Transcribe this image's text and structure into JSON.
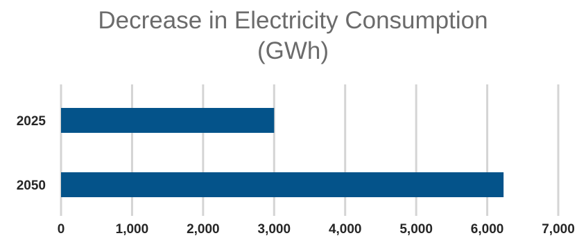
{
  "chart_data": {
    "type": "bar",
    "orientation": "horizontal",
    "title_line1": "Decrease in Electricity Consumption",
    "title_line2": "(GWh)",
    "categories": [
      "2025",
      "2050"
    ],
    "values": [
      3000,
      6230
    ],
    "xlim": [
      0,
      7000
    ],
    "xticks": [
      "0",
      "1,000",
      "2,000",
      "3,000",
      "4,000",
      "5,000",
      "6,000",
      "7,000"
    ],
    "grid": "vertical",
    "legend": "none",
    "bar_color": "#04538a",
    "grid_color": "#d4d4d4"
  }
}
